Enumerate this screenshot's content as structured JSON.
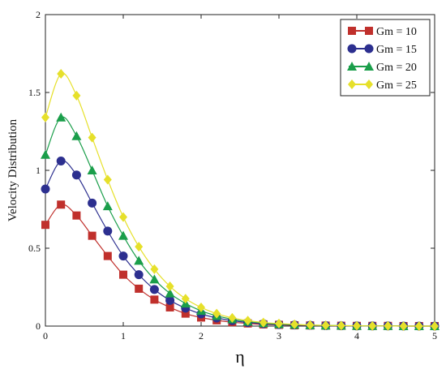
{
  "chart_data": {
    "type": "line",
    "xlabel": "η",
    "ylabel": "Velocity Distribution",
    "xlim": [
      0,
      5
    ],
    "ylim": [
      0,
      2
    ],
    "x_ticks": [
      "0",
      "1",
      "2",
      "3",
      "4",
      "5"
    ],
    "y_ticks": [
      "0",
      "0.5",
      "1",
      "1.5",
      "2"
    ],
    "grid": false,
    "legend_position": "top-right",
    "x": [
      0,
      0.2,
      0.4,
      0.6,
      0.8,
      1.0,
      1.2,
      1.4,
      1.6,
      1.8,
      2.0,
      2.2,
      2.4,
      2.6,
      2.8,
      3.0,
      3.2,
      3.4,
      3.6,
      3.8,
      4.0,
      4.2,
      4.4,
      4.6,
      4.8,
      5.0
    ],
    "series": [
      {
        "name": "Gm = 10",
        "color": "#c0302c",
        "marker": "square",
        "values": [
          0.65,
          0.78,
          0.71,
          0.58,
          0.45,
          0.33,
          0.24,
          0.17,
          0.12,
          0.08,
          0.055,
          0.037,
          0.025,
          0.017,
          0.011,
          0.008,
          0.005,
          0.004,
          0.003,
          0.002,
          0.001,
          0.001,
          0.001,
          0.0,
          0.0,
          0.0
        ]
      },
      {
        "name": "Gm = 15",
        "color": "#2c2f8f",
        "marker": "circle",
        "values": [
          0.88,
          1.06,
          0.97,
          0.79,
          0.61,
          0.45,
          0.33,
          0.235,
          0.165,
          0.115,
          0.078,
          0.052,
          0.035,
          0.023,
          0.015,
          0.01,
          0.007,
          0.005,
          0.003,
          0.002,
          0.001,
          0.001,
          0.001,
          0.0,
          0.0,
          0.0
        ]
      },
      {
        "name": "Gm = 20",
        "color": "#1a9e4a",
        "marker": "triangle",
        "values": [
          1.1,
          1.34,
          1.22,
          1.0,
          0.77,
          0.58,
          0.42,
          0.3,
          0.21,
          0.145,
          0.098,
          0.066,
          0.044,
          0.029,
          0.019,
          0.013,
          0.009,
          0.006,
          0.004,
          0.003,
          0.002,
          0.001,
          0.001,
          0.0,
          0.0,
          0.0
        ]
      },
      {
        "name": "Gm = 25",
        "color": "#e6e02a",
        "marker": "diamond",
        "values": [
          1.34,
          1.62,
          1.48,
          1.21,
          0.94,
          0.7,
          0.51,
          0.365,
          0.255,
          0.176,
          0.12,
          0.08,
          0.053,
          0.035,
          0.023,
          0.016,
          0.011,
          0.007,
          0.005,
          0.003,
          0.002,
          0.001,
          0.001,
          0.0,
          0.0,
          0.0
        ]
      }
    ]
  }
}
